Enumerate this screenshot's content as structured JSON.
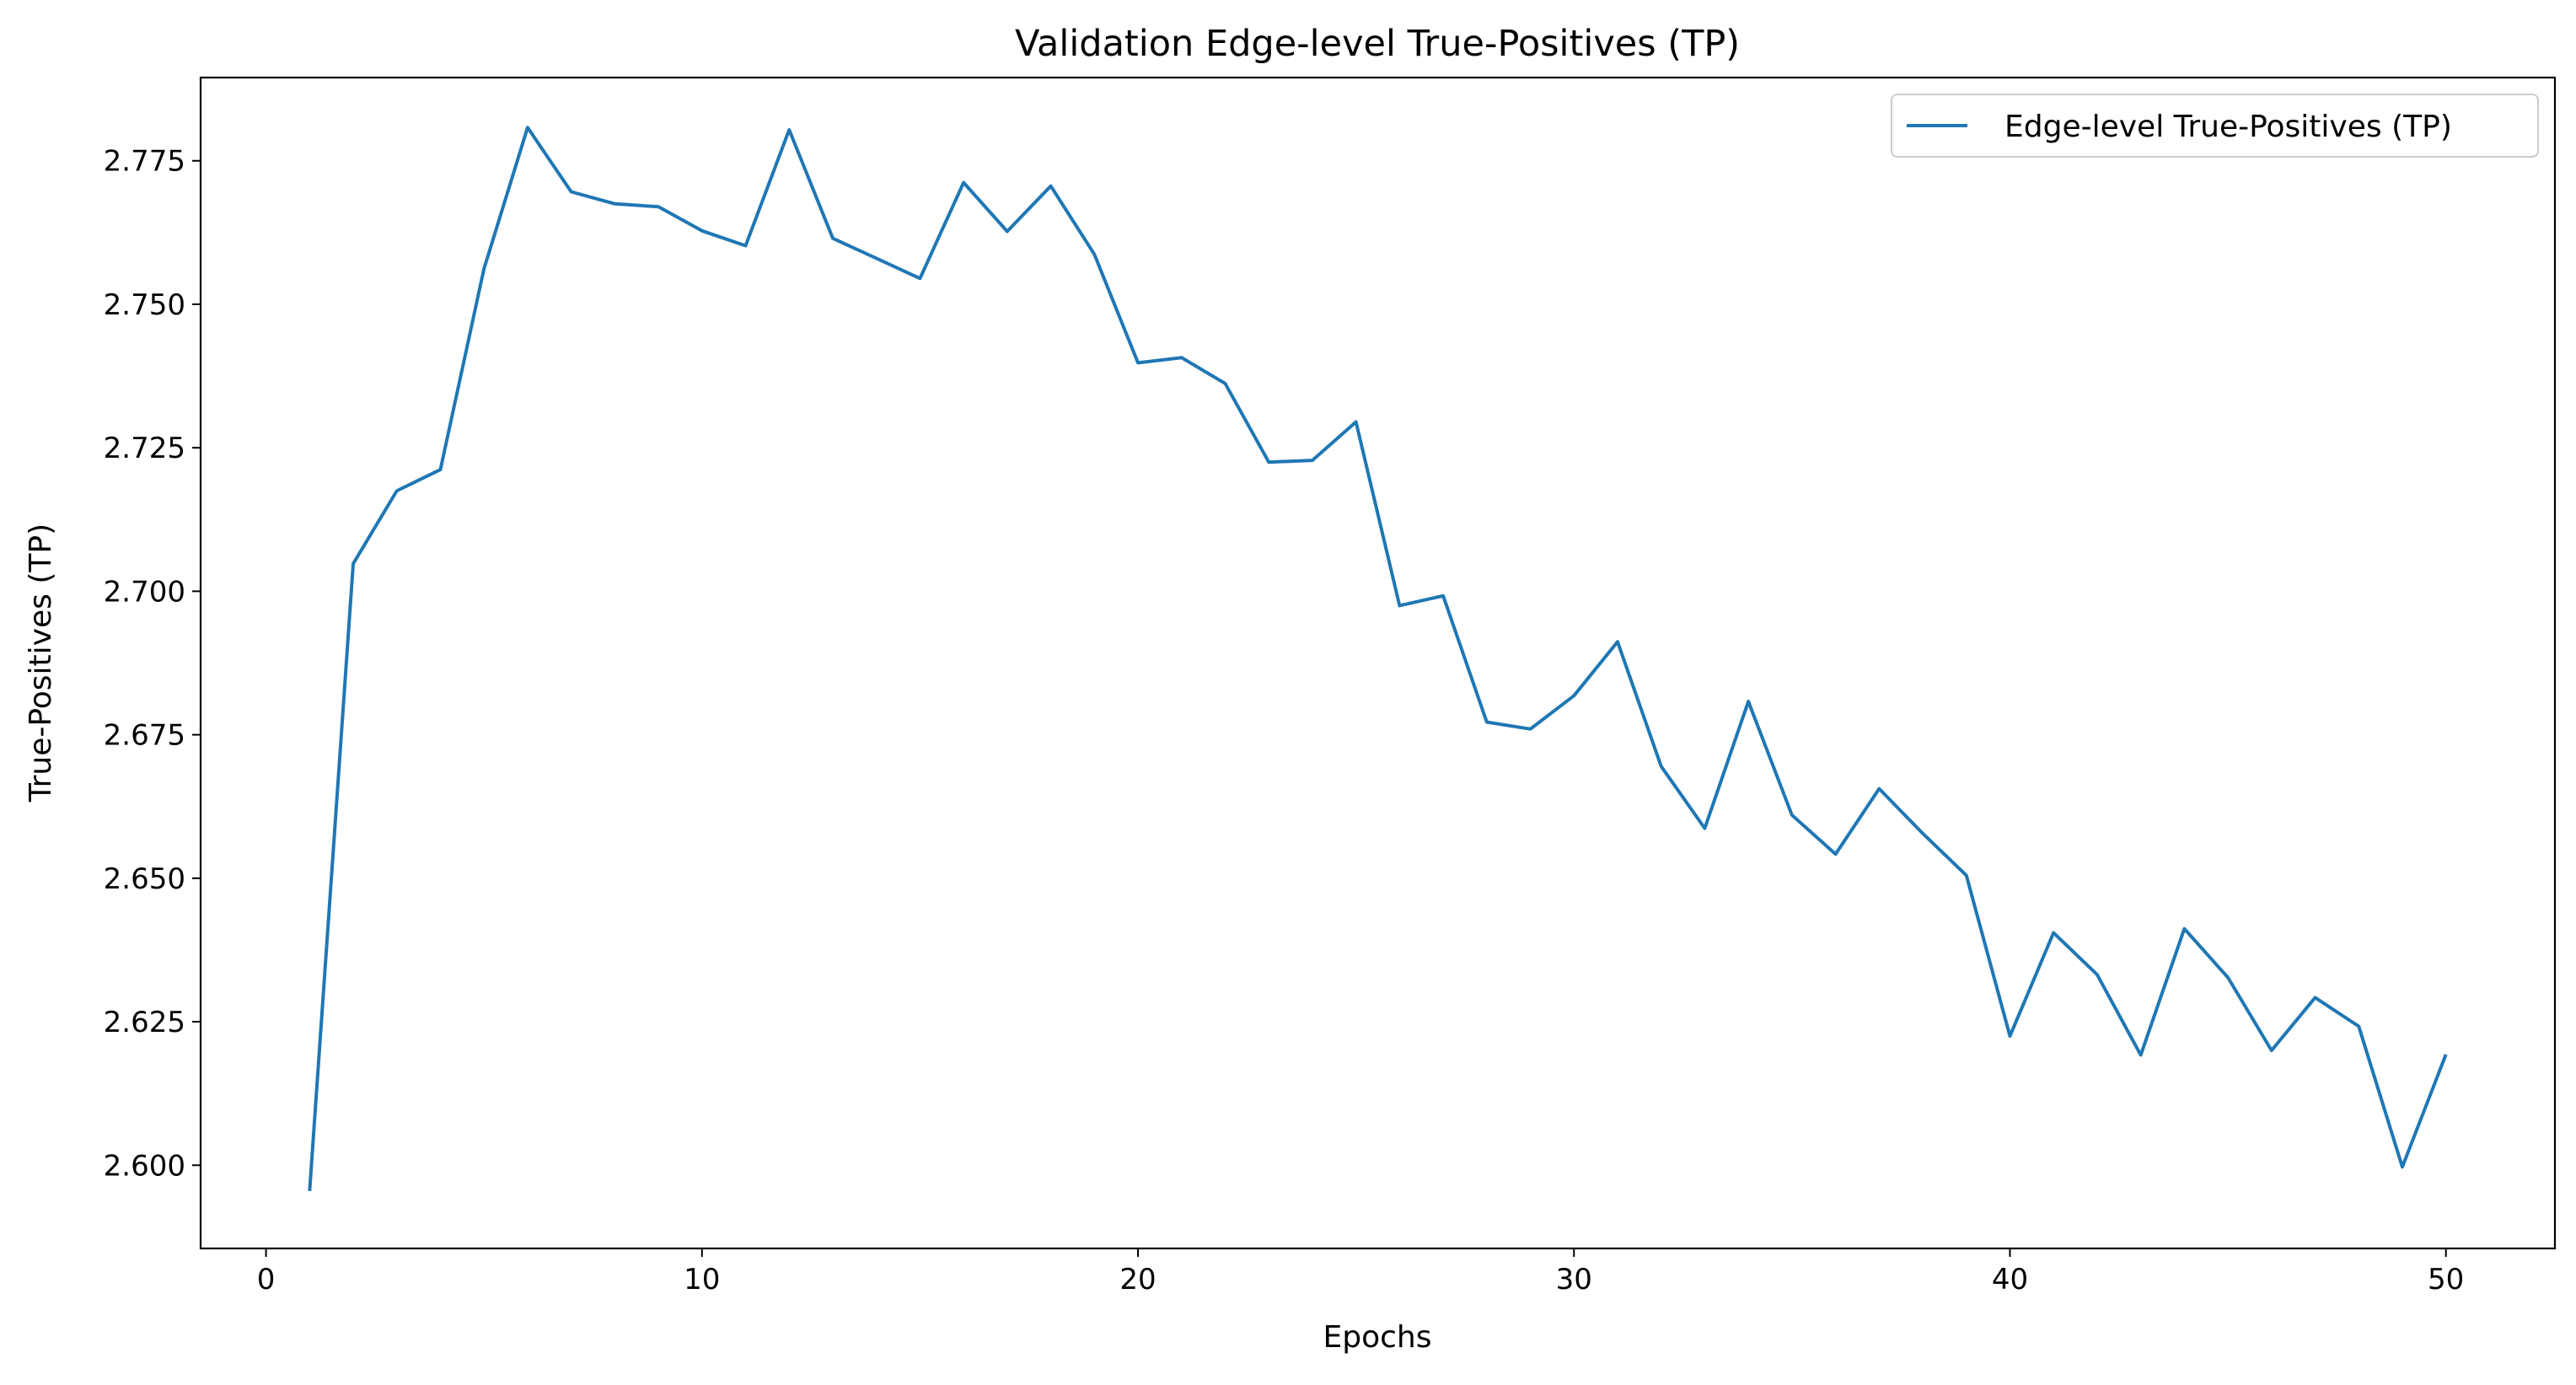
{
  "chart_data": {
    "type": "line",
    "title": "Validation Edge-level True-Positives (TP)",
    "xlabel": "Epochs",
    "ylabel": "True-Positives (TP)",
    "xlim": [
      -1.5,
      52.5
    ],
    "ylim": [
      2.5855,
      2.7895
    ],
    "xticks": [
      0,
      10,
      20,
      30,
      40,
      50
    ],
    "xtick_labels": [
      "0",
      "10",
      "20",
      "30",
      "40",
      "50"
    ],
    "yticks": [
      2.6,
      2.625,
      2.65,
      2.675,
      2.7,
      2.725,
      2.75,
      2.775
    ],
    "ytick_labels": [
      "2.600",
      "2.625",
      "2.650",
      "2.675",
      "2.700",
      "2.725",
      "2.750",
      "2.775"
    ],
    "grid": false,
    "legend_position": "upper right",
    "series": [
      {
        "name": "Edge-level True-Positives (TP)",
        "color": "#1f77b4",
        "x": [
          1,
          2,
          3,
          4,
          5,
          6,
          7,
          8,
          9,
          10,
          11,
          12,
          13,
          14,
          15,
          16,
          17,
          18,
          19,
          20,
          21,
          22,
          23,
          24,
          25,
          26,
          27,
          28,
          29,
          30,
          31,
          32,
          33,
          34,
          35,
          36,
          37,
          38,
          39,
          40,
          41,
          42,
          43,
          44,
          45,
          46,
          47,
          48,
          49,
          50
        ],
        "y": [
          2.5955,
          2.7048,
          2.7175,
          2.7212,
          2.7562,
          2.7808,
          2.7696,
          2.7675,
          2.767,
          2.7628,
          2.7602,
          2.7804,
          2.7615,
          2.758,
          2.7545,
          2.7712,
          2.7627,
          2.7706,
          2.7587,
          2.7398,
          2.7407,
          2.7362,
          2.7225,
          2.7228,
          2.7295,
          2.6975,
          2.6992,
          2.6772,
          2.676,
          2.6818,
          2.6912,
          2.6695,
          2.6587,
          2.6808,
          2.661,
          2.6542,
          2.6656,
          2.6578,
          2.6505,
          2.6225,
          2.6405,
          2.6332,
          2.6192,
          2.6412,
          2.6327,
          2.62,
          2.6292,
          2.6242,
          2.5997,
          2.6193
        ]
      }
    ]
  }
}
